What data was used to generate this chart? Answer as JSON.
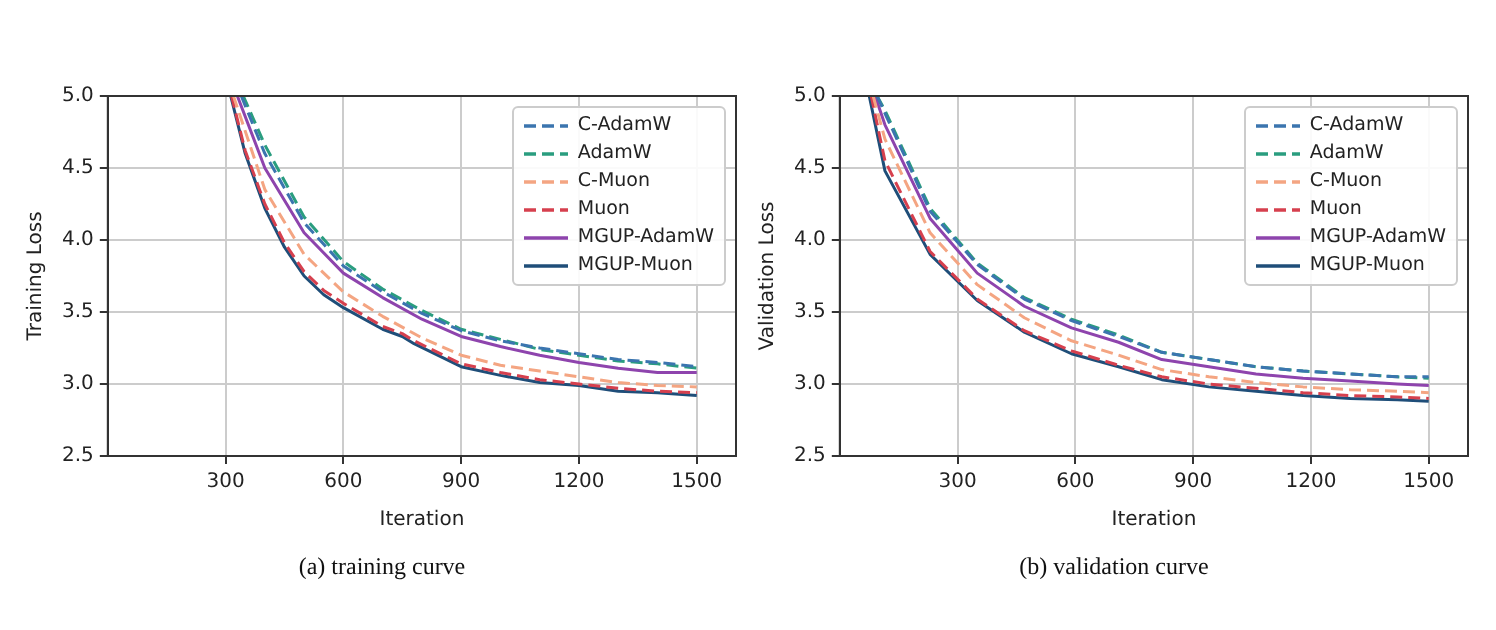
{
  "chart_data": [
    {
      "type": "line",
      "title": "(a) training curve",
      "xlabel": "Iteration",
      "ylabel": "Training Loss",
      "xlim": [
        0,
        1600
      ],
      "xticks": [
        300,
        600,
        900,
        1200,
        1500
      ],
      "ylim": [
        2.5,
        5.0
      ],
      "yticks": [
        {
          "value": 2.5,
          "label": "2.5"
        },
        {
          "value": 3,
          "label": "3.0"
        },
        {
          "value": 3.5,
          "label": "3.5"
        },
        {
          "value": 4,
          "label": "4.0"
        },
        {
          "value": 4.5,
          "label": "4.5"
        },
        {
          "value": 5,
          "label": "5.0"
        }
      ],
      "grid": true,
      "legend": "top right",
      "marker": "none",
      "series": [
        {
          "name": "C-AdamW",
          "color": "#3b75af",
          "line_style": "dashed",
          "x": [
            340,
            400,
            500,
            600,
            700,
            800,
            900,
            1000,
            1100,
            1200,
            1300,
            1400,
            1500
          ],
          "values": [
            5.0,
            4.6,
            4.12,
            3.82,
            3.64,
            3.49,
            3.37,
            3.3,
            3.25,
            3.21,
            3.17,
            3.15,
            3.12
          ]
        },
        {
          "name": "AdamW",
          "color": "#2a9d7f",
          "line_style": "dashed",
          "x": [
            345,
            400,
            500,
            600,
            700,
            800,
            900,
            1000,
            1100,
            1200,
            1300,
            1400,
            1500
          ],
          "values": [
            5.0,
            4.66,
            4.16,
            3.85,
            3.66,
            3.51,
            3.38,
            3.31,
            3.24,
            3.2,
            3.16,
            3.14,
            3.11
          ]
        },
        {
          "name": "C-Muon",
          "color": "#f4a582",
          "line_style": "dashed",
          "x": [
            320,
            400,
            500,
            600,
            700,
            800,
            900,
            1000,
            1100,
            1200,
            1300,
            1400,
            1500
          ],
          "values": [
            5.0,
            4.35,
            3.9,
            3.64,
            3.47,
            3.32,
            3.2,
            3.13,
            3.09,
            3.05,
            3.01,
            2.99,
            2.98
          ]
        },
        {
          "name": "Muon",
          "color": "#d6404e",
          "line_style": "dashed",
          "x": [
            315,
            350,
            400,
            450,
            500,
            550,
            600,
            700,
            750,
            780,
            900,
            1000,
            1100,
            1200,
            1300,
            1400,
            1500
          ],
          "values": [
            5.0,
            4.62,
            4.25,
            3.98,
            3.78,
            3.65,
            3.56,
            3.4,
            3.35,
            3.3,
            3.14,
            3.08,
            3.03,
            3.0,
            2.97,
            2.95,
            2.94
          ]
        },
        {
          "name": "MGUP-AdamW",
          "color": "#8e44ad",
          "line_style": "solid",
          "x": [
            330,
            400,
            500,
            600,
            700,
            800,
            900,
            1000,
            1100,
            1200,
            1300,
            1400,
            1500
          ],
          "values": [
            5.0,
            4.5,
            4.05,
            3.77,
            3.6,
            3.45,
            3.33,
            3.26,
            3.2,
            3.15,
            3.11,
            3.08,
            3.08
          ]
        },
        {
          "name": "MGUP-Muon",
          "color": "#1f4e79",
          "line_style": "solid",
          "x": [
            313,
            350,
            400,
            450,
            500,
            550,
            600,
            700,
            750,
            780,
            900,
            1000,
            1100,
            1200,
            1300,
            1400,
            1500
          ],
          "values": [
            5.0,
            4.6,
            4.22,
            3.95,
            3.75,
            3.62,
            3.53,
            3.38,
            3.33,
            3.28,
            3.12,
            3.06,
            3.01,
            2.99,
            2.95,
            2.94,
            2.92
          ]
        }
      ]
    },
    {
      "type": "line",
      "title": "(b) validation curve",
      "xlabel": "Iteration",
      "ylabel": "Validation Loss",
      "xlim": [
        0,
        1600
      ],
      "xticks": [
        300,
        600,
        900,
        1200,
        1500
      ],
      "ylim": [
        2.5,
        5.0
      ],
      "yticks": [
        {
          "value": 2.5,
          "label": "2.5"
        },
        {
          "value": 3,
          "label": "3.0"
        },
        {
          "value": 3.5,
          "label": "3.5"
        },
        {
          "value": 4,
          "label": "4.0"
        },
        {
          "value": 4.5,
          "label": "4.5"
        },
        {
          "value": 5,
          "label": "5.0"
        }
      ],
      "grid": true,
      "legend": "top right",
      "marker": "none",
      "series": [
        {
          "name": "C-AdamW",
          "color": "#3b75af",
          "line_style": "dashed",
          "x": [
            95,
            115,
            230,
            350,
            470,
            590,
            710,
            820,
            940,
            1060,
            1180,
            1300,
            1420,
            1500
          ],
          "values": [
            5.0,
            4.88,
            4.2,
            3.83,
            3.59,
            3.44,
            3.33,
            3.22,
            3.17,
            3.12,
            3.09,
            3.07,
            3.05,
            3.05
          ]
        },
        {
          "name": "AdamW",
          "color": "#2a9d7f",
          "line_style": "dashed",
          "x": [
            95,
            115,
            230,
            350,
            470,
            590,
            710,
            820,
            940,
            1060,
            1180,
            1300,
            1420,
            1500
          ],
          "values": [
            5.0,
            4.9,
            4.22,
            3.84,
            3.6,
            3.45,
            3.34,
            3.22,
            3.17,
            3.12,
            3.09,
            3.07,
            3.05,
            3.04
          ]
        },
        {
          "name": "C-Muon",
          "color": "#f4a582",
          "line_style": "dashed",
          "x": [
            85,
            115,
            230,
            350,
            470,
            590,
            710,
            820,
            940,
            1060,
            1180,
            1300,
            1420,
            1500
          ],
          "values": [
            5.0,
            4.7,
            4.05,
            3.69,
            3.46,
            3.3,
            3.2,
            3.1,
            3.05,
            3.01,
            2.98,
            2.96,
            2.95,
            2.94
          ]
        },
        {
          "name": "Muon",
          "color": "#d6404e",
          "line_style": "dashed",
          "x": [
            80,
            115,
            230,
            350,
            470,
            590,
            710,
            820,
            940,
            1060,
            1180,
            1300,
            1420,
            1500
          ],
          "values": [
            5.0,
            4.55,
            3.92,
            3.59,
            3.37,
            3.23,
            3.13,
            3.05,
            3.0,
            2.97,
            2.94,
            2.92,
            2.91,
            2.9
          ]
        },
        {
          "name": "MGUP-AdamW",
          "color": "#8e44ad",
          "line_style": "solid",
          "x": [
            90,
            115,
            230,
            350,
            470,
            590,
            710,
            820,
            940,
            1060,
            1180,
            1300,
            1420,
            1500
          ],
          "values": [
            5.0,
            4.8,
            4.15,
            3.77,
            3.54,
            3.39,
            3.29,
            3.17,
            3.12,
            3.07,
            3.04,
            3.02,
            3.0,
            2.99
          ]
        },
        {
          "name": "MGUP-Muon",
          "color": "#1f4e79",
          "line_style": "solid",
          "x": [
            75,
            115,
            230,
            350,
            470,
            590,
            710,
            820,
            940,
            1060,
            1180,
            1300,
            1420,
            1500
          ],
          "values": [
            5.0,
            4.48,
            3.9,
            3.58,
            3.36,
            3.21,
            3.12,
            3.03,
            2.98,
            2.95,
            2.92,
            2.9,
            2.89,
            2.88
          ]
        }
      ]
    }
  ]
}
